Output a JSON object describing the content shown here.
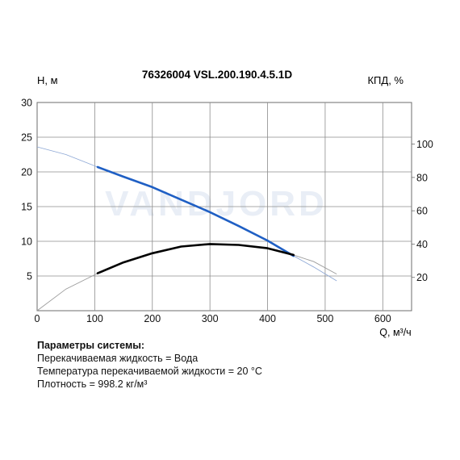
{
  "chart_data": {
    "type": "line",
    "title": "76326004 VSL.200.190.4.5.1D",
    "ylabel_left": "H, м",
    "ylabel_right": "КПД, %",
    "xlabel": "Q, м³/ч",
    "watermark": "VANDJORD",
    "xlim": [
      0,
      650
    ],
    "ylim_left": [
      0,
      30
    ],
    "ylim_right": [
      0,
      125
    ],
    "xticks": [
      0,
      100,
      200,
      300,
      400,
      500,
      600
    ],
    "yticks_left": [
      5,
      10,
      15,
      20,
      25,
      30
    ],
    "yticks_right": [
      20,
      40,
      60,
      80,
      100
    ],
    "grid": true,
    "series": [
      {
        "axis": "left",
        "color": "#1f5fc4",
        "x": [
          0,
          50,
          105,
          150,
          200,
          250,
          300,
          350,
          400,
          445,
          480,
          520
        ],
        "y": [
          23.6,
          22.5,
          20.7,
          19.3,
          17.8,
          16.0,
          14.2,
          12.2,
          10.1,
          7.9,
          6.3,
          4.3
        ]
      },
      {
        "axis": "right",
        "color": "#000000",
        "x": [
          0,
          50,
          105,
          150,
          200,
          250,
          300,
          350,
          400,
          445,
          480,
          520
        ],
        "y": [
          0,
          13,
          22.5,
          29,
          34.5,
          38.5,
          40,
          39.5,
          37.5,
          33.5,
          29.5,
          22
        ]
      }
    ],
    "operating_range": [
      105,
      445
    ]
  },
  "params": {
    "title": "Параметры системы:",
    "lines": [
      "Перекачиваемая жидкость = Вода",
      "Температура перекачиваемой жидкости = 20 °C",
      "Плотность = 998.2 кг/м³"
    ]
  }
}
